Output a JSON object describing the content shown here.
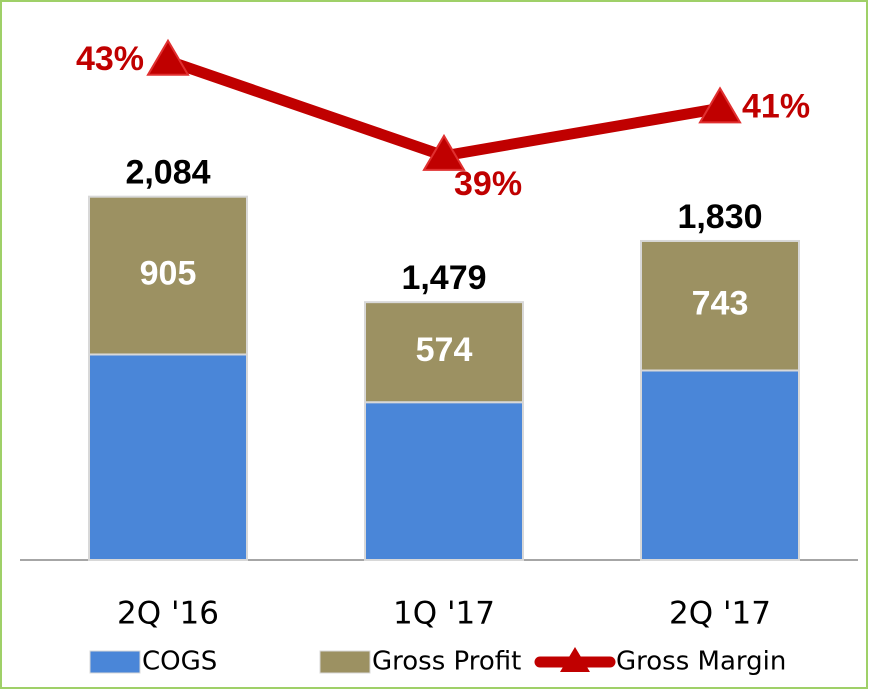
{
  "chart_data": {
    "type": "bar",
    "categories": [
      "2Q '16",
      "1Q '17",
      "2Q '17"
    ],
    "series": [
      {
        "name": "COGS",
        "color": "#4a86d8",
        "values": [
          1179,
          905,
          1087
        ]
      },
      {
        "name": "Gross Profit",
        "color": "#9c9162",
        "values": [
          905,
          574,
          743
        ]
      },
      {
        "name": "Gross Margin",
        "color": "#c00000",
        "type": "line",
        "axis": "y2",
        "values": [
          43,
          39,
          41
        ],
        "value_labels": [
          "43%",
          "39%",
          "41%"
        ]
      }
    ],
    "total_values": [
      2084,
      1479,
      1830
    ],
    "total_value_labels": [
      "2,084",
      "1,479",
      "1,830"
    ],
    "stacked": true,
    "ylim": [
      0,
      3000
    ],
    "y2lim": [
      22,
      44
    ]
  }
}
